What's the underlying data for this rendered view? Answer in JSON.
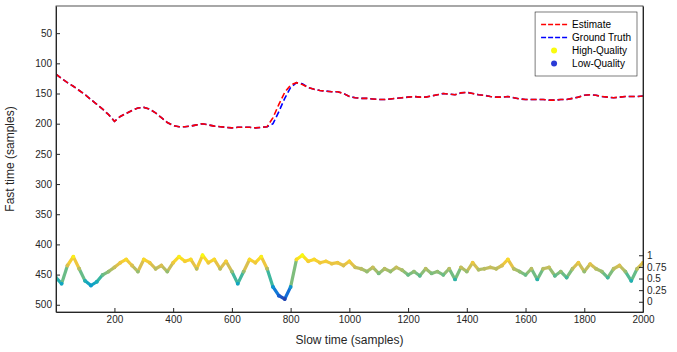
{
  "chart_data": {
    "type": "line",
    "x_label": "Slow time (samples)",
    "y_label": "Fast time (samples)",
    "xlim": [
      1,
      2000
    ],
    "xticks": [
      200,
      400,
      600,
      800,
      1000,
      1200,
      1400,
      1600,
      1800,
      2000
    ],
    "ylim": [
      512,
      5
    ],
    "yticks": [
      50,
      100,
      150,
      200,
      250,
      300,
      350,
      400,
      450,
      500
    ],
    "y2lim": [
      -0.22,
      6.36
    ],
    "y2ticks": [
      0,
      0.25,
      0.5,
      0.75,
      1
    ],
    "grid": false,
    "legend": "top-right",
    "x": [
      1,
      20,
      40,
      60,
      80,
      100,
      120,
      140,
      160,
      180,
      200,
      220,
      240,
      260,
      280,
      300,
      320,
      340,
      360,
      380,
      400,
      420,
      440,
      460,
      480,
      500,
      520,
      540,
      560,
      580,
      600,
      620,
      640,
      660,
      680,
      700,
      720,
      740,
      760,
      780,
      800,
      820,
      840,
      860,
      880,
      900,
      920,
      940,
      960,
      980,
      1000,
      1020,
      1040,
      1060,
      1080,
      1100,
      1120,
      1140,
      1160,
      1180,
      1200,
      1220,
      1240,
      1260,
      1280,
      1300,
      1320,
      1340,
      1360,
      1380,
      1400,
      1420,
      1440,
      1460,
      1480,
      1500,
      1520,
      1540,
      1560,
      1580,
      1600,
      1620,
      1640,
      1660,
      1680,
      1700,
      1720,
      1740,
      1760,
      1780,
      1800,
      1820,
      1840,
      1860,
      1880,
      1900,
      1920,
      1940,
      1960,
      1980,
      2000
    ],
    "series": [
      {
        "name": "Estimate",
        "type": "line",
        "color": "#ff0000",
        "line_style": "dashed",
        "values": [
          118,
          125,
          132,
          138,
          145,
          152,
          160,
          168,
          176,
          185,
          196,
          188,
          183,
          178,
          174,
          173,
          176,
          182,
          190,
          198,
          203,
          205,
          205,
          204,
          202,
          200,
          202,
          204,
          205,
          206,
          207,
          206,
          206,
          206,
          207,
          206,
          205,
          190,
          168,
          148,
          136,
          132,
          135,
          140,
          143,
          145,
          146,
          147,
          147,
          150,
          155,
          157,
          158,
          158,
          159,
          160,
          160,
          159,
          158,
          157,
          156,
          155,
          156,
          156,
          154,
          152,
          150,
          151,
          152,
          149,
          148,
          150,
          152,
          153,
          155,
          156,
          156,
          155,
          157,
          159,
          160,
          160,
          160,
          160,
          161,
          161,
          160,
          160,
          158,
          156,
          153,
          152,
          153,
          155,
          156,
          157,
          156,
          155,
          155,
          155,
          154
        ]
      },
      {
        "name": "Ground Truth",
        "type": "line",
        "color": "#0000ff",
        "line_style": "dashed",
        "values": [
          118,
          125,
          132,
          138,
          145,
          152,
          160,
          168,
          176,
          185,
          196,
          188,
          183,
          178,
          174,
          173,
          176,
          182,
          190,
          198,
          203,
          205,
          205,
          204,
          202,
          200,
          202,
          204,
          205,
          206,
          207,
          206,
          206,
          206,
          207,
          206,
          205,
          200,
          180,
          158,
          140,
          132,
          134,
          140,
          143,
          145,
          146,
          147,
          147,
          150,
          155,
          157,
          158,
          158,
          159,
          160,
          160,
          159,
          158,
          157,
          156,
          155,
          156,
          156,
          154,
          152,
          150,
          151,
          152,
          149,
          148,
          150,
          152,
          153,
          155,
          156,
          156,
          155,
          157,
          159,
          160,
          160,
          160,
          160,
          161,
          161,
          160,
          160,
          158,
          156,
          153,
          152,
          153,
          155,
          156,
          157,
          156,
          155,
          155,
          155,
          154
        ]
      },
      {
        "name": "High-Quality",
        "type": "line",
        "marker": "circle",
        "color": "#f9fb0e",
        "axis": "y2",
        "values": [
          0.52,
          null,
          0.78,
          0.97,
          0.71,
          null,
          null,
          null,
          0.58,
          0.65,
          0.74,
          0.84,
          0.91,
          0.78,
          0.65,
          0.91,
          0.84,
          0.71,
          0.78,
          0.65,
          0.84,
          0.97,
          0.87,
          0.91,
          0.71,
          1,
          0.84,
          0.91,
          0.71,
          0.87,
          0.65,
          null,
          0.65,
          0.91,
          0.84,
          0.97,
          0.71,
          null,
          null,
          null,
          null,
          0.91,
          1,
          0.87,
          0.91,
          0.84,
          0.87,
          0.82,
          0.84,
          0.78,
          0.87,
          0.74,
          0.71,
          0.65,
          0.74,
          0.61,
          0.71,
          0.65,
          0.74,
          0.68,
          0.58,
          0.65,
          0.56,
          0.71,
          0.61,
          0.65,
          0.58,
          0.71,
          null,
          0.74,
          0.65,
          0.84,
          0.69,
          0.71,
          0.74,
          0.71,
          0.78,
          0.91,
          0.71,
          0.65,
          0.58,
          0.71,
          null,
          0.71,
          0.74,
          0.56,
          0.65,
          0.52,
          0.71,
          0.84,
          0.65,
          0.81,
          0.71,
          0.65,
          0.52,
          0.71,
          0.78,
          0.65,
          null,
          0.71,
          0.84
        ]
      },
      {
        "name": "Low-Quality",
        "type": "line",
        "marker": "circle",
        "color": "#2a3bd6",
        "axis": "y2",
        "values": [
          null,
          0.39,
          null,
          null,
          null,
          0.45,
          0.35,
          0.43,
          null,
          null,
          null,
          null,
          null,
          null,
          null,
          null,
          null,
          null,
          null,
          null,
          null,
          null,
          null,
          null,
          null,
          null,
          null,
          null,
          null,
          null,
          null,
          0.39,
          null,
          null,
          null,
          null,
          null,
          0.32,
          0.13,
          0.06,
          0.32,
          null,
          null,
          null,
          null,
          null,
          null,
          null,
          null,
          null,
          null,
          null,
          null,
          null,
          null,
          null,
          null,
          null,
          null,
          null,
          null,
          null,
          null,
          null,
          null,
          null,
          null,
          null,
          0.48,
          null,
          null,
          null,
          null,
          null,
          null,
          null,
          null,
          null,
          null,
          null,
          null,
          null,
          0.48,
          null,
          null,
          null,
          null,
          null,
          null,
          null,
          null,
          null,
          null,
          null,
          null,
          null,
          null,
          null,
          0.45,
          null,
          null
        ]
      }
    ]
  }
}
